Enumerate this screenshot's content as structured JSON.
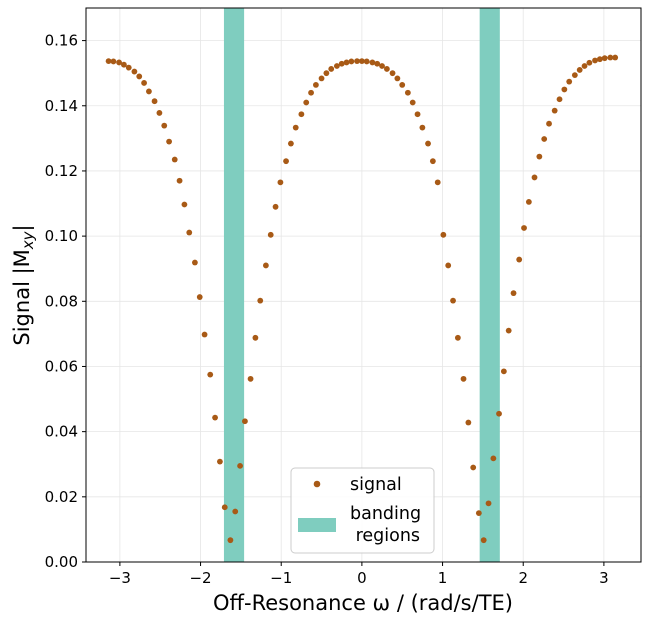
{
  "chart_data": {
    "type": "scatter",
    "title": "",
    "xlabel": "Off-Resonance ω / (rad/s/TE)",
    "ylabel": "Signal |M",
    "ylabel_sub": "xy",
    "ylabel_close": "|",
    "xlim": [
      -3.42,
      3.46
    ],
    "ylim": [
      0,
      0.17
    ],
    "xticks": [
      -3,
      -2,
      -1,
      0,
      1,
      2,
      3
    ],
    "xtick_labels": [
      "−3",
      "−2",
      "−1",
      "0",
      "1",
      "2",
      "3"
    ],
    "yticks": [
      0.0,
      0.02,
      0.04,
      0.06,
      0.08,
      0.1,
      0.12,
      0.14,
      0.16
    ],
    "ytick_labels": [
      "0.00",
      "0.02",
      "0.04",
      "0.06",
      "0.08",
      "0.10",
      "0.12",
      "0.14",
      "0.16"
    ],
    "grid": true,
    "legend_position": "lower-center",
    "legend": [
      {
        "label": "signal",
        "kind": "marker"
      },
      {
        "label": "banding\n regions",
        "kind": "patch"
      }
    ],
    "colors": {
      "signal": "#a85a16",
      "banding": "#7fcdbf"
    },
    "bands": [
      {
        "x_start": -1.71,
        "x_end": -1.46
      },
      {
        "x_start": 1.46,
        "x_end": 1.71
      }
    ],
    "series": [
      {
        "name": "signal",
        "x": [
          -3.14,
          -3.08,
          -3.01,
          -2.95,
          -2.89,
          -2.82,
          -2.76,
          -2.7,
          -2.64,
          -2.57,
          -2.51,
          -2.45,
          -2.39,
          -2.32,
          -2.26,
          -2.2,
          -2.14,
          -2.07,
          -2.01,
          -1.95,
          -1.88,
          -1.82,
          -1.76,
          -1.7,
          -1.63,
          -1.57,
          -1.51,
          -1.45,
          -1.38,
          -1.32,
          -1.26,
          -1.19,
          -1.13,
          -1.07,
          -1.01,
          -0.94,
          -0.88,
          -0.82,
          -0.75,
          -0.69,
          -0.63,
          -0.57,
          -0.5,
          -0.44,
          -0.38,
          -0.31,
          -0.25,
          -0.19,
          -0.13,
          -0.06,
          0.0,
          0.06,
          0.13,
          0.19,
          0.25,
          0.31,
          0.38,
          0.44,
          0.5,
          0.57,
          0.63,
          0.69,
          0.75,
          0.82,
          0.88,
          0.94,
          1.01,
          1.07,
          1.13,
          1.19,
          1.26,
          1.32,
          1.38,
          1.45,
          1.51,
          1.57,
          1.63,
          1.7,
          1.76,
          1.82,
          1.88,
          1.95,
          2.01,
          2.07,
          2.14,
          2.2,
          2.26,
          2.32,
          2.39,
          2.45,
          2.51,
          2.57,
          2.64,
          2.7,
          2.76,
          2.82,
          2.89,
          2.95,
          3.01,
          3.08,
          3.14
        ],
        "y": [
          0.1537,
          0.1536,
          0.1533,
          0.1526,
          0.1517,
          0.1505,
          0.149,
          0.147,
          0.1444,
          0.1414,
          0.1378,
          0.1339,
          0.129,
          0.1235,
          0.117,
          0.1097,
          0.1011,
          0.0919,
          0.0813,
          0.0698,
          0.0575,
          0.0443,
          0.0308,
          0.0168,
          0.0067,
          0.0155,
          0.0295,
          0.0432,
          0.0562,
          0.0688,
          0.0802,
          0.091,
          0.1004,
          0.109,
          0.1165,
          0.123,
          0.1284,
          0.1333,
          0.1374,
          0.141,
          0.144,
          0.1464,
          0.1484,
          0.15,
          0.1513,
          0.1522,
          0.1529,
          0.1533,
          0.1536,
          0.1537,
          0.1537,
          0.1536,
          0.1533,
          0.1529,
          0.1522,
          0.1513,
          0.15,
          0.1484,
          0.1464,
          0.144,
          0.141,
          0.1374,
          0.1333,
          0.1284,
          0.123,
          0.1165,
          0.1004,
          0.091,
          0.0802,
          0.0688,
          0.0562,
          0.0428,
          0.029,
          0.015,
          0.0067,
          0.018,
          0.0318,
          0.0455,
          0.0585,
          0.071,
          0.0825,
          0.0928,
          0.1025,
          0.1105,
          0.118,
          0.1244,
          0.1298,
          0.1345,
          0.1385,
          0.142,
          0.145,
          0.1474,
          0.1494,
          0.151,
          0.1522,
          0.1532,
          0.1539,
          0.1543,
          0.1546,
          0.1548,
          0.1548
        ]
      }
    ]
  }
}
